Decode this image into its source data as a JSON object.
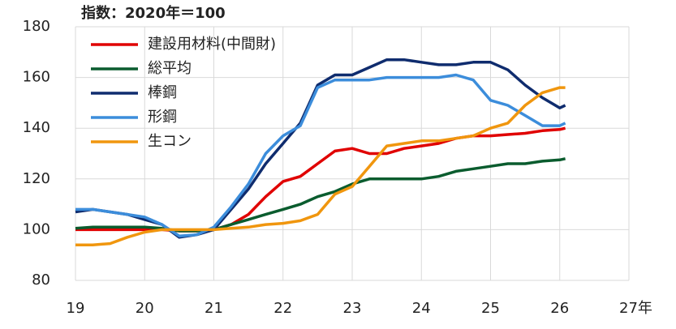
{
  "chart_data": {
    "type": "line",
    "title": "指数：2020年＝100",
    "x": [
      19,
      19.25,
      19.5,
      19.75,
      20,
      20.25,
      20.5,
      20.75,
      21,
      21.25,
      21.5,
      21.75,
      22,
      22.25,
      22.5,
      22.75,
      23,
      23.25,
      23.5,
      23.75,
      24,
      24.25,
      24.5,
      24.75,
      25,
      25.25,
      25.5,
      25.75,
      26,
      26.08
    ],
    "series": [
      {
        "name": "建設用材料(中間財)",
        "color": "#e00000",
        "values": [
          100,
          100,
          100,
          100,
          100,
          100,
          99.5,
          99.5,
          100,
          102,
          106,
          113,
          119,
          121,
          126,
          131,
          132,
          130,
          130,
          132,
          133,
          134,
          136,
          137,
          137,
          137.5,
          138,
          139,
          139.5,
          140
        ]
      },
      {
        "name": "総平均",
        "color": "#0a5c2e",
        "values": [
          100.5,
          101,
          101,
          101,
          101,
          100.5,
          99.5,
          99.5,
          100,
          102,
          104,
          106,
          108,
          110,
          113,
          115,
          118,
          120,
          120,
          120,
          120,
          121,
          123,
          124,
          125,
          126,
          126,
          127,
          127.5,
          128
        ]
      },
      {
        "name": "棒鋼",
        "color": "#0f2c6e",
        "values": [
          107,
          108,
          107,
          106,
          104,
          102,
          97,
          98,
          100,
          108,
          116,
          126,
          134,
          142,
          157,
          161,
          161,
          164,
          167,
          167,
          166,
          165,
          165,
          166,
          166,
          163,
          157,
          152,
          148,
          149
        ]
      },
      {
        "name": "形鋼",
        "color": "#3c8ddb",
        "values": [
          108,
          108,
          107,
          106,
          105,
          102,
          97.5,
          98,
          101,
          109,
          118,
          130,
          137,
          141,
          156,
          159,
          159,
          159,
          160,
          160,
          160,
          160,
          161,
          159,
          151,
          149,
          145,
          141,
          141,
          142
        ]
      },
      {
        "name": "生コン",
        "color": "#f0960e",
        "values": [
          94,
          94,
          94.5,
          97,
          99,
          100,
          100,
          100,
          100,
          100.5,
          101,
          102,
          102.5,
          103.5,
          106,
          114,
          117,
          125,
          133,
          134,
          135,
          135,
          136,
          137,
          140,
          142,
          149,
          154,
          156,
          156
        ]
      }
    ],
    "xlim": [
      19,
      27
    ],
    "xticks": [
      19,
      20,
      21,
      22,
      23,
      24,
      25,
      26,
      {
        "value": 27,
        "label": "27年"
      }
    ],
    "ylim": [
      80,
      180
    ],
    "yticks": [
      80,
      100,
      120,
      140,
      160,
      180
    ],
    "grid": true,
    "legend": "upper-left"
  }
}
